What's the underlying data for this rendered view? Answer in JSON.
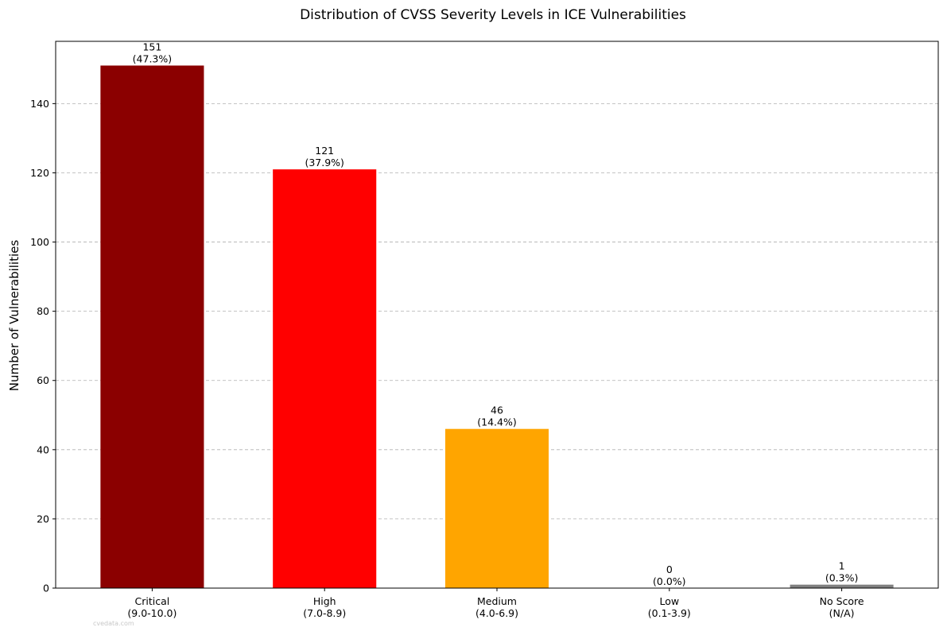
{
  "chart_data": {
    "type": "bar",
    "title": "Distribution of CVSS Severity Levels in ICE Vulnerabilities",
    "xlabel": "",
    "ylabel": "Number of Vulnerabilities",
    "ylim": [
      0,
      158
    ],
    "yticks": [
      0,
      20,
      40,
      60,
      80,
      100,
      120,
      140
    ],
    "grid": "y-dashed",
    "categories": [
      {
        "line1": "Critical",
        "line2": "(9.0-10.0)"
      },
      {
        "line1": "High",
        "line2": "(7.0-8.9)"
      },
      {
        "line1": "Medium",
        "line2": "(4.0-6.9)"
      },
      {
        "line1": "Low",
        "line2": "(0.1-3.9)"
      },
      {
        "line1": "No Score",
        "line2": "(N/A)"
      }
    ],
    "values": [
      151,
      121,
      46,
      0,
      1
    ],
    "percent_labels": [
      "(47.3%)",
      "(37.9%)",
      "(14.4%)",
      "(0.0%)",
      "(0.3%)"
    ],
    "colors": [
      "#8b0000",
      "#ff0000",
      "#ffa500",
      "#ffff00",
      "#808080"
    ]
  },
  "watermark": "cvedata.com"
}
